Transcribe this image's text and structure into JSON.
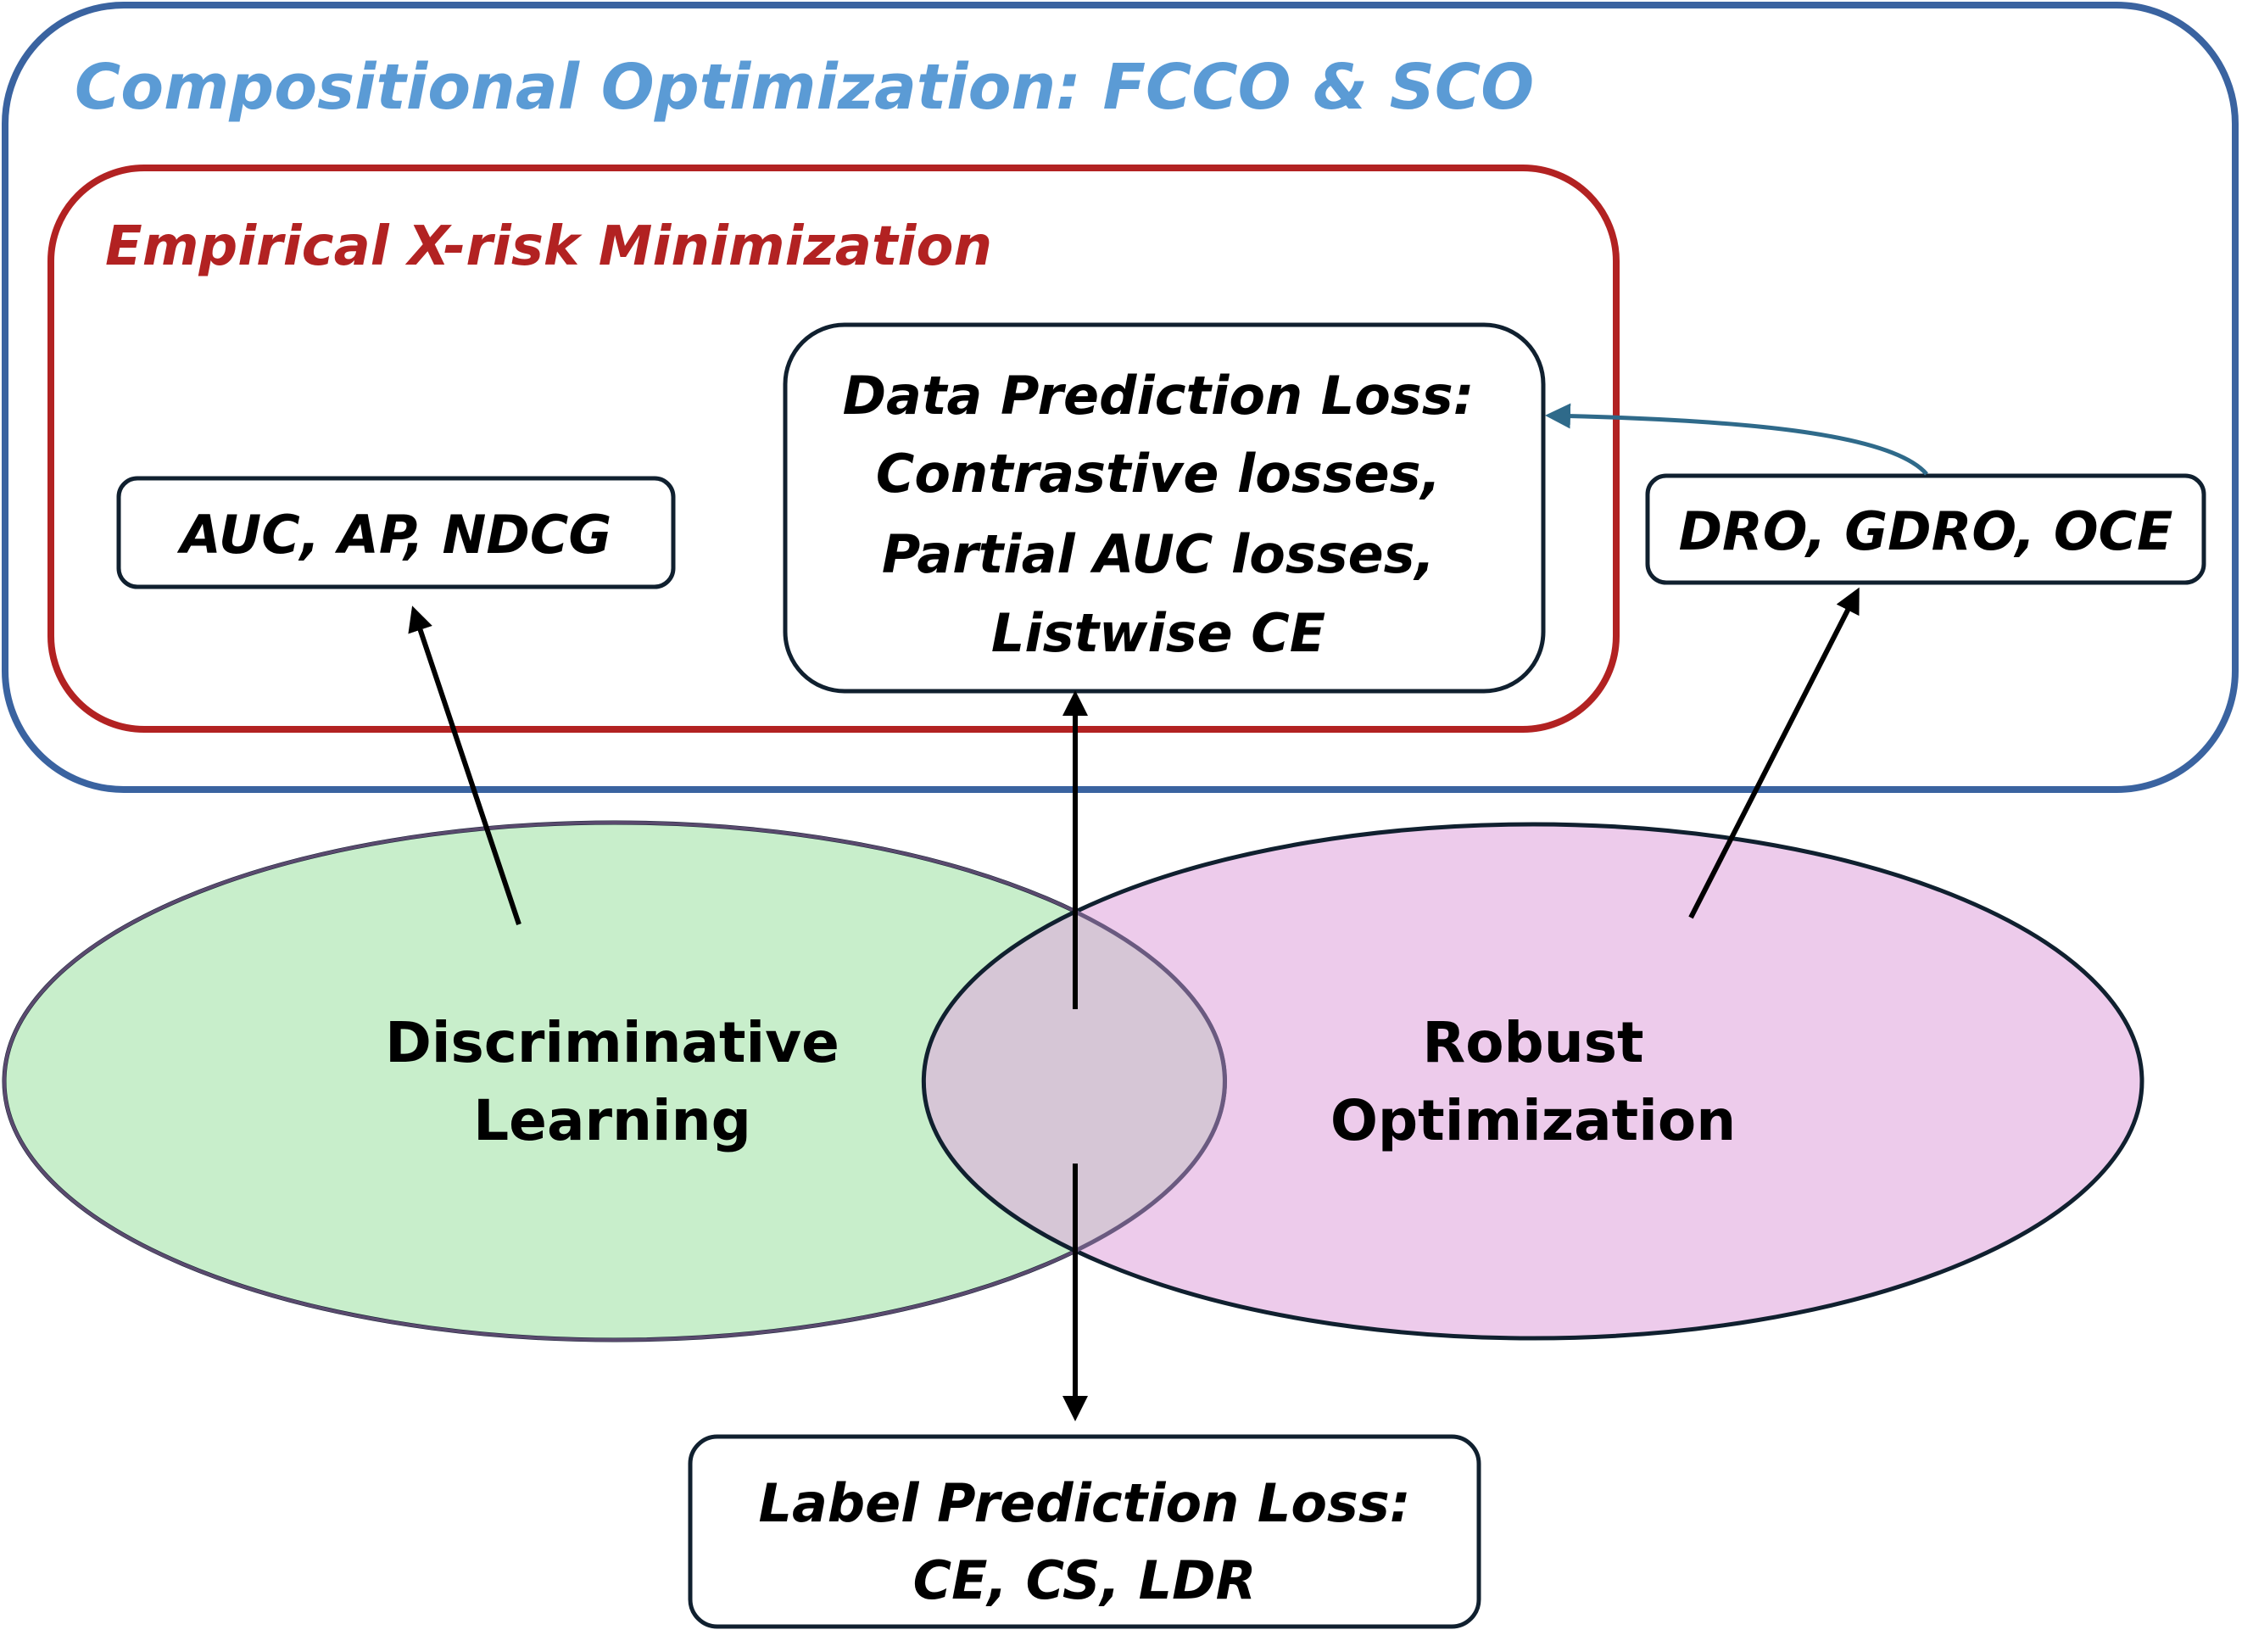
{
  "outer_box": {
    "title": "Compositional Optimization: FCCO & SCO"
  },
  "xrisk_box": {
    "title": "Empirical X-risk Minimization"
  },
  "auc_box": {
    "label": "AUC, AP, NDCG"
  },
  "data_loss_box": {
    "lines": [
      "Data Prediction Loss:",
      "Contrastive losses,",
      "Partial AUC losses,",
      "Listwise CE"
    ]
  },
  "dro_box": {
    "label": "DRO, GDRO, OCE"
  },
  "discriminative": {
    "lines": [
      "Discriminative",
      "Learning"
    ],
    "color": "#C8EECB"
  },
  "robust": {
    "lines": [
      "Robust",
      "Optimization"
    ],
    "color": "#EDCBEB"
  },
  "overlap_color": "#D6C6D6",
  "label_loss_box": {
    "lines": [
      "Label Prediction Loss:",
      "CE, CS, LDR"
    ]
  },
  "colors": {
    "outer_border": "#3A63A0",
    "xrisk_border": "#B22222",
    "box_border": "#10202F",
    "arrow_blue": "#2F6A8A"
  }
}
